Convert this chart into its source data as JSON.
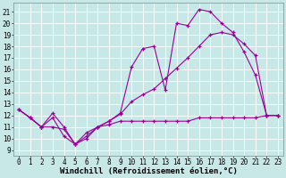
{
  "xlabel": "Windchill (Refroidissement éolien,°C)",
  "background_color": "#c8e8e8",
  "grid_color": "#ffffff",
  "line_color": "#990099",
  "x_ticks": [
    0,
    1,
    2,
    3,
    4,
    5,
    6,
    7,
    8,
    9,
    10,
    11,
    12,
    13,
    14,
    15,
    16,
    17,
    18,
    19,
    20,
    21,
    22,
    23
  ],
  "y_ticks": [
    9,
    10,
    11,
    12,
    13,
    14,
    15,
    16,
    17,
    18,
    19,
    20,
    21
  ],
  "xlim": [
    -0.5,
    23.5
  ],
  "ylim": [
    8.5,
    21.8
  ],
  "line1_x": [
    0,
    1,
    2,
    3,
    4,
    5,
    6,
    7,
    8,
    9,
    10,
    11,
    12,
    13,
    14,
    15,
    16,
    17,
    18,
    19,
    20,
    21,
    22,
    23
  ],
  "line1_y": [
    12.5,
    11.8,
    11.0,
    12.2,
    11.0,
    9.5,
    10.5,
    11.0,
    11.5,
    12.1,
    13.2,
    13.8,
    14.3,
    15.2,
    16.1,
    17.0,
    18.0,
    19.0,
    19.2,
    19.0,
    18.2,
    17.2,
    12.0,
    12.0
  ],
  "line2_x": [
    0,
    1,
    2,
    3,
    4,
    5,
    6,
    7,
    8,
    9,
    10,
    11,
    12,
    13,
    14,
    15,
    16,
    17,
    18,
    19,
    20,
    21,
    22,
    23
  ],
  "line2_y": [
    12.5,
    11.8,
    11.0,
    11.8,
    10.2,
    9.5,
    10.0,
    11.0,
    11.5,
    12.2,
    16.2,
    17.8,
    18.0,
    14.2,
    20.0,
    19.8,
    21.2,
    21.0,
    20.0,
    19.2,
    17.5,
    15.5,
    12.0,
    12.0
  ],
  "line3_x": [
    0,
    1,
    2,
    3,
    4,
    5,
    6,
    7,
    8,
    9,
    10,
    11,
    12,
    13,
    14,
    15,
    16,
    17,
    18,
    19,
    20,
    21,
    22,
    23
  ],
  "line3_y": [
    12.5,
    11.8,
    11.0,
    11.0,
    10.8,
    9.5,
    10.2,
    11.0,
    11.2,
    11.5,
    11.5,
    11.5,
    11.5,
    11.5,
    11.5,
    11.5,
    11.8,
    11.8,
    11.8,
    11.8,
    11.8,
    11.8,
    12.0,
    12.0
  ],
  "tick_fontsize": 5.5,
  "xlabel_fontsize": 6.5
}
